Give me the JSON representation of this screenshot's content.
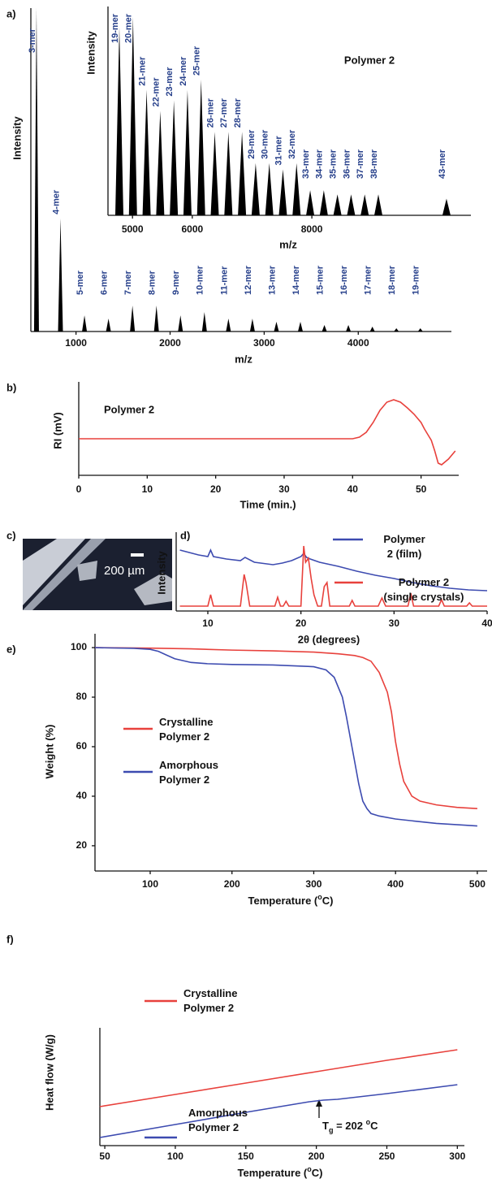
{
  "chart_data": [
    {
      "type": "stick",
      "panel": "a)",
      "xlabel": "m/z",
      "ylabel": "Intensity",
      "xlim": [
        520,
        4990
      ],
      "xticks": [
        1000,
        2000,
        3000,
        4000
      ],
      "ylim": [
        0,
        100
      ],
      "color": "#000000",
      "label_color": "#27408b",
      "x": [
        580,
        835,
        1090,
        1345,
        1600,
        1855,
        2110,
        2365,
        2620,
        2875,
        3130,
        3385,
        3640,
        3895,
        4150,
        4405,
        4660
      ],
      "values": [
        100,
        35,
        5,
        4,
        8,
        8,
        5,
        6,
        4,
        4,
        3,
        3,
        2,
        2,
        1.5,
        1,
        1
      ],
      "labels": [
        "3-mer",
        "4-mer",
        "5-mer",
        "6-mer",
        "7-mer",
        "8-mer",
        "9-mer",
        "10-mer",
        "11-mer",
        "12-mer",
        "13-mer",
        "14-mer",
        "15-mer",
        "16-mer",
        "17-mer",
        "18-mer",
        "19-mer"
      ]
    },
    {
      "type": "stick",
      "title": "Polymer 2",
      "xlabel": "m/z",
      "ylabel": "Intensity",
      "xlim": [
        4590,
        10660
      ],
      "xticks": [
        5000,
        6000,
        8000
      ],
      "ylim": [
        0,
        100
      ],
      "color": "#000000",
      "label_color": "#27408b",
      "x": [
        4780,
        5008,
        5236,
        5464,
        5692,
        5920,
        6148,
        6376,
        6604,
        6832,
        7060,
        7288,
        7516,
        7744,
        7972,
        8200,
        8428,
        8656,
        8884,
        9112,
        10252
      ],
      "values": [
        90,
        95,
        60,
        50,
        55,
        60,
        65,
        40,
        40,
        40,
        25,
        25,
        22,
        25,
        12,
        12,
        10,
        10,
        10,
        10,
        8
      ],
      "labels": [
        "19-mer",
        "20-mer",
        "21-mer",
        "22-mer",
        "23-mer",
        "24-mer",
        "25-mer",
        "26-mer",
        "27-mer",
        "28-mer",
        "29-mer",
        "30-mer",
        "31-mer",
        "32-mer",
        "33-mer",
        "34-mer",
        "35-mer",
        "36-mer",
        "37-mer",
        "38-mer",
        "43-mer"
      ]
    },
    {
      "type": "line",
      "panel": "b)",
      "annotation": "Polymer 2",
      "xlabel": "Time (min.)",
      "ylabel": "RI (mV)",
      "xlim": [
        0,
        55.5
      ],
      "xticks": [
        0,
        10,
        20,
        30,
        40,
        50
      ],
      "ylim": [
        -45,
        70
      ],
      "color": "#e8413c",
      "x": [
        0,
        10,
        20,
        30,
        38,
        40,
        41,
        42,
        43,
        44,
        45,
        46,
        47,
        48,
        49,
        50,
        50.5,
        51,
        51.5,
        52,
        52.5,
        53,
        54,
        55
      ],
      "values": [
        0,
        0,
        0,
        0,
        0,
        0,
        2,
        8,
        20,
        35,
        45,
        48,
        45,
        38,
        30,
        20,
        12,
        5,
        -2,
        -15,
        -30,
        -32,
        -25,
        -15
      ]
    },
    {
      "type": "line",
      "panel": "d)",
      "xlabel": "2θ (degrees)",
      "ylabel": "Intensity",
      "xlim": [
        6.6,
        40
      ],
      "xticks": [
        10,
        20,
        30,
        40
      ],
      "ylim": [
        0,
        97
      ],
      "series": [
        {
          "name": "Polymer 2 (film)",
          "color": "#3d4bb0",
          "x": [
            7,
            8,
            9,
            10,
            10.3,
            10.6,
            12,
            13.5,
            14,
            15,
            17,
            18,
            19,
            20,
            20.3,
            20.6,
            21,
            22,
            24,
            26,
            28,
            30,
            32,
            34,
            36,
            38,
            40
          ],
          "values": [
            75,
            72,
            69,
            67,
            75,
            67,
            64,
            62,
            66,
            60,
            57,
            59,
            62,
            67,
            71,
            66,
            64,
            60,
            55,
            49,
            44,
            40,
            35,
            31,
            28,
            26,
            25
          ]
        },
        {
          "name": "Polymer 2 (single crystals)",
          "color": "#e8413c",
          "x": [
            7,
            10,
            10.3,
            10.6,
            13.5,
            13.9,
            14.1,
            14.5,
            17.2,
            17.5,
            17.8,
            18.1,
            18.4,
            18.7,
            20,
            20.3,
            20.5,
            20.8,
            21.1,
            21.4,
            21.8,
            22.2,
            22.5,
            22.8,
            23.1,
            25.2,
            25.5,
            25.8,
            28.3,
            28.7,
            29.1,
            31.5,
            31.8,
            32.1,
            34.8,
            35.1,
            35.4,
            37.8,
            38.1,
            38.4,
            40
          ],
          "values": [
            6,
            6,
            20,
            6,
            6,
            45,
            35,
            6,
            6,
            17,
            6,
            6,
            12,
            6,
            6,
            80,
            60,
            65,
            40,
            20,
            6,
            6,
            30,
            35,
            6,
            6,
            13,
            6,
            6,
            16,
            6,
            6,
            22,
            6,
            6,
            14,
            6,
            6,
            10,
            6,
            6
          ]
        }
      ]
    },
    {
      "type": "line",
      "panel": "e)",
      "xlabel": [
        "Temperature (",
        "o",
        "C)"
      ],
      "ylabel": "Weight (%)",
      "xlim": [
        32.5,
        512
      ],
      "xticks": [
        100,
        200,
        300,
        400,
        500
      ],
      "ylim": [
        9.8,
        105.6
      ],
      "yticks": [
        20,
        40,
        60,
        80,
        100
      ],
      "series": [
        {
          "name": "Crystalline Polymer 2",
          "color": "#e8413c",
          "x": [
            32.5,
            100,
            150,
            200,
            250,
            300,
            330,
            350,
            360,
            370,
            380,
            390,
            395,
            400,
            405,
            410,
            420,
            430,
            450,
            475,
            500
          ],
          "values": [
            100,
            99.8,
            99.5,
            99,
            98.7,
            98.2,
            97.5,
            96.8,
            96,
            94.5,
            90,
            82,
            74,
            62,
            53,
            46,
            40,
            38,
            36.5,
            35.5,
            35
          ]
        },
        {
          "name": "Amorphous Polymer 2",
          "color": "#3d4bb0",
          "x": [
            32.5,
            80,
            100,
            110,
            120,
            130,
            150,
            170,
            200,
            250,
            300,
            315,
            325,
            335,
            340,
            345,
            350,
            355,
            360,
            365,
            370,
            380,
            400,
            450,
            500
          ],
          "values": [
            100,
            99.7,
            99.3,
            98.5,
            97,
            95.5,
            94,
            93.5,
            93.2,
            93,
            92.3,
            91,
            88,
            80,
            72,
            63,
            54,
            45,
            38,
            35,
            33,
            32,
            30.8,
            29,
            28
          ]
        }
      ]
    },
    {
      "type": "line",
      "panel": "f)",
      "xlabel": [
        "Temperature (",
        "o",
        "C)"
      ],
      "ylabel": "Heat flow (W/g)",
      "annotation_parts": [
        "T",
        "g",
        " = 202 ",
        "o",
        "C"
      ],
      "xlim": [
        46.5,
        305
      ],
      "xticks": [
        50,
        100,
        150,
        200,
        250,
        300
      ],
      "ylim": [
        0,
        145
      ],
      "series": [
        {
          "name": "Crystalline Polymer 2",
          "color": "#e8413c",
          "x": [
            46.5,
            100,
            150,
            200,
            250,
            300
          ],
          "values": [
            48,
            63,
            77,
            91,
            105,
            118
          ]
        },
        {
          "name": "Amorphous Polymer 2",
          "color": "#3d4bb0",
          "x": [
            46.5,
            100,
            150,
            195,
            205,
            215,
            250,
            300
          ],
          "values": [
            10,
            26,
            41,
            54,
            56,
            57,
            64,
            75
          ]
        }
      ]
    }
  ],
  "photo": {
    "panel": "c)",
    "scale_bar": "200 µm"
  }
}
